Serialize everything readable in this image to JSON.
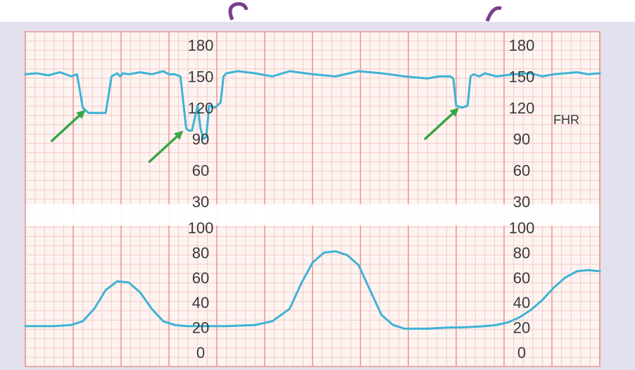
{
  "chart_data": [
    {
      "type": "line",
      "name_label": "FHR",
      "ylim": [
        30,
        180
      ],
      "yticks": [
        "180",
        "150",
        "120",
        "90",
        "60",
        "30"
      ],
      "x_range": [
        0,
        100
      ],
      "color": "#3fb3d4",
      "series": [
        {
          "x": [
            0,
            2,
            4,
            6,
            8,
            9,
            10,
            11,
            12,
            13,
            14,
            15,
            16,
            16.5,
            17,
            18,
            20,
            22,
            24,
            25,
            26,
            27,
            28,
            28.5,
            29,
            30,
            30.5,
            31,
            31.5,
            32,
            33,
            34,
            34.5,
            35,
            37,
            40,
            43,
            46,
            50,
            54,
            58,
            62,
            66,
            70,
            72,
            74,
            74.5,
            75,
            76,
            77,
            77.5,
            78,
            79,
            80,
            82,
            85,
            88,
            90,
            92,
            94,
            96,
            98,
            100
          ],
          "y": [
            152,
            153,
            151,
            154,
            150,
            152,
            120,
            115,
            115,
            115,
            115,
            150,
            153,
            150,
            153,
            152,
            154,
            152,
            155,
            152,
            152,
            150,
            100,
            98,
            98,
            122,
            100,
            90,
            92,
            122,
            120,
            125,
            150,
            153,
            155,
            153,
            150,
            155,
            152,
            150,
            155,
            153,
            150,
            148,
            150,
            150,
            148,
            122,
            120,
            122,
            150,
            152,
            150,
            153,
            150,
            152,
            153,
            150,
            152,
            153,
            154,
            152,
            153
          ]
        }
      ],
      "annotations": [
        {
          "type": "arrow",
          "at_x": 10.5,
          "at_y": 118
        },
        {
          "type": "arrow",
          "at_x": 27.5,
          "at_y": 98
        },
        {
          "type": "arrow",
          "at_x": 75.5,
          "at_y": 120
        }
      ]
    },
    {
      "type": "line",
      "ylim": [
        0,
        100
      ],
      "yticks": [
        "100",
        "80",
        "60",
        "40",
        "20",
        "0"
      ],
      "x_range": [
        0,
        100
      ],
      "color": "#3fb3d4",
      "series": [
        {
          "x": [
            0,
            5,
            8,
            10,
            12,
            14,
            16,
            18,
            20,
            22,
            24,
            26,
            28,
            30,
            35,
            40,
            43,
            46,
            48,
            50,
            52,
            54,
            56,
            58,
            60,
            62,
            64,
            66,
            68,
            70,
            72,
            74,
            76,
            78,
            80,
            82,
            84,
            86,
            88,
            90,
            92,
            94,
            96,
            98,
            100
          ],
          "y": [
            21,
            21,
            22,
            25,
            35,
            50,
            57,
            56,
            48,
            35,
            25,
            22,
            21,
            21,
            21,
            22,
            25,
            35,
            55,
            72,
            80,
            81,
            78,
            70,
            50,
            30,
            22,
            19,
            19,
            19,
            19.5,
            20,
            20,
            20.5,
            21,
            22,
            24,
            28,
            34,
            42,
            52,
            60,
            65,
            66,
            65
          ]
        }
      ]
    }
  ],
  "colors": {
    "grid_minor": "#f4c9c4",
    "grid_major": "#e89a90",
    "paper": "#fdf4f2",
    "trace": "#3fb3d4",
    "arrow": "#3ba447",
    "frame": "#e3e1ee"
  }
}
